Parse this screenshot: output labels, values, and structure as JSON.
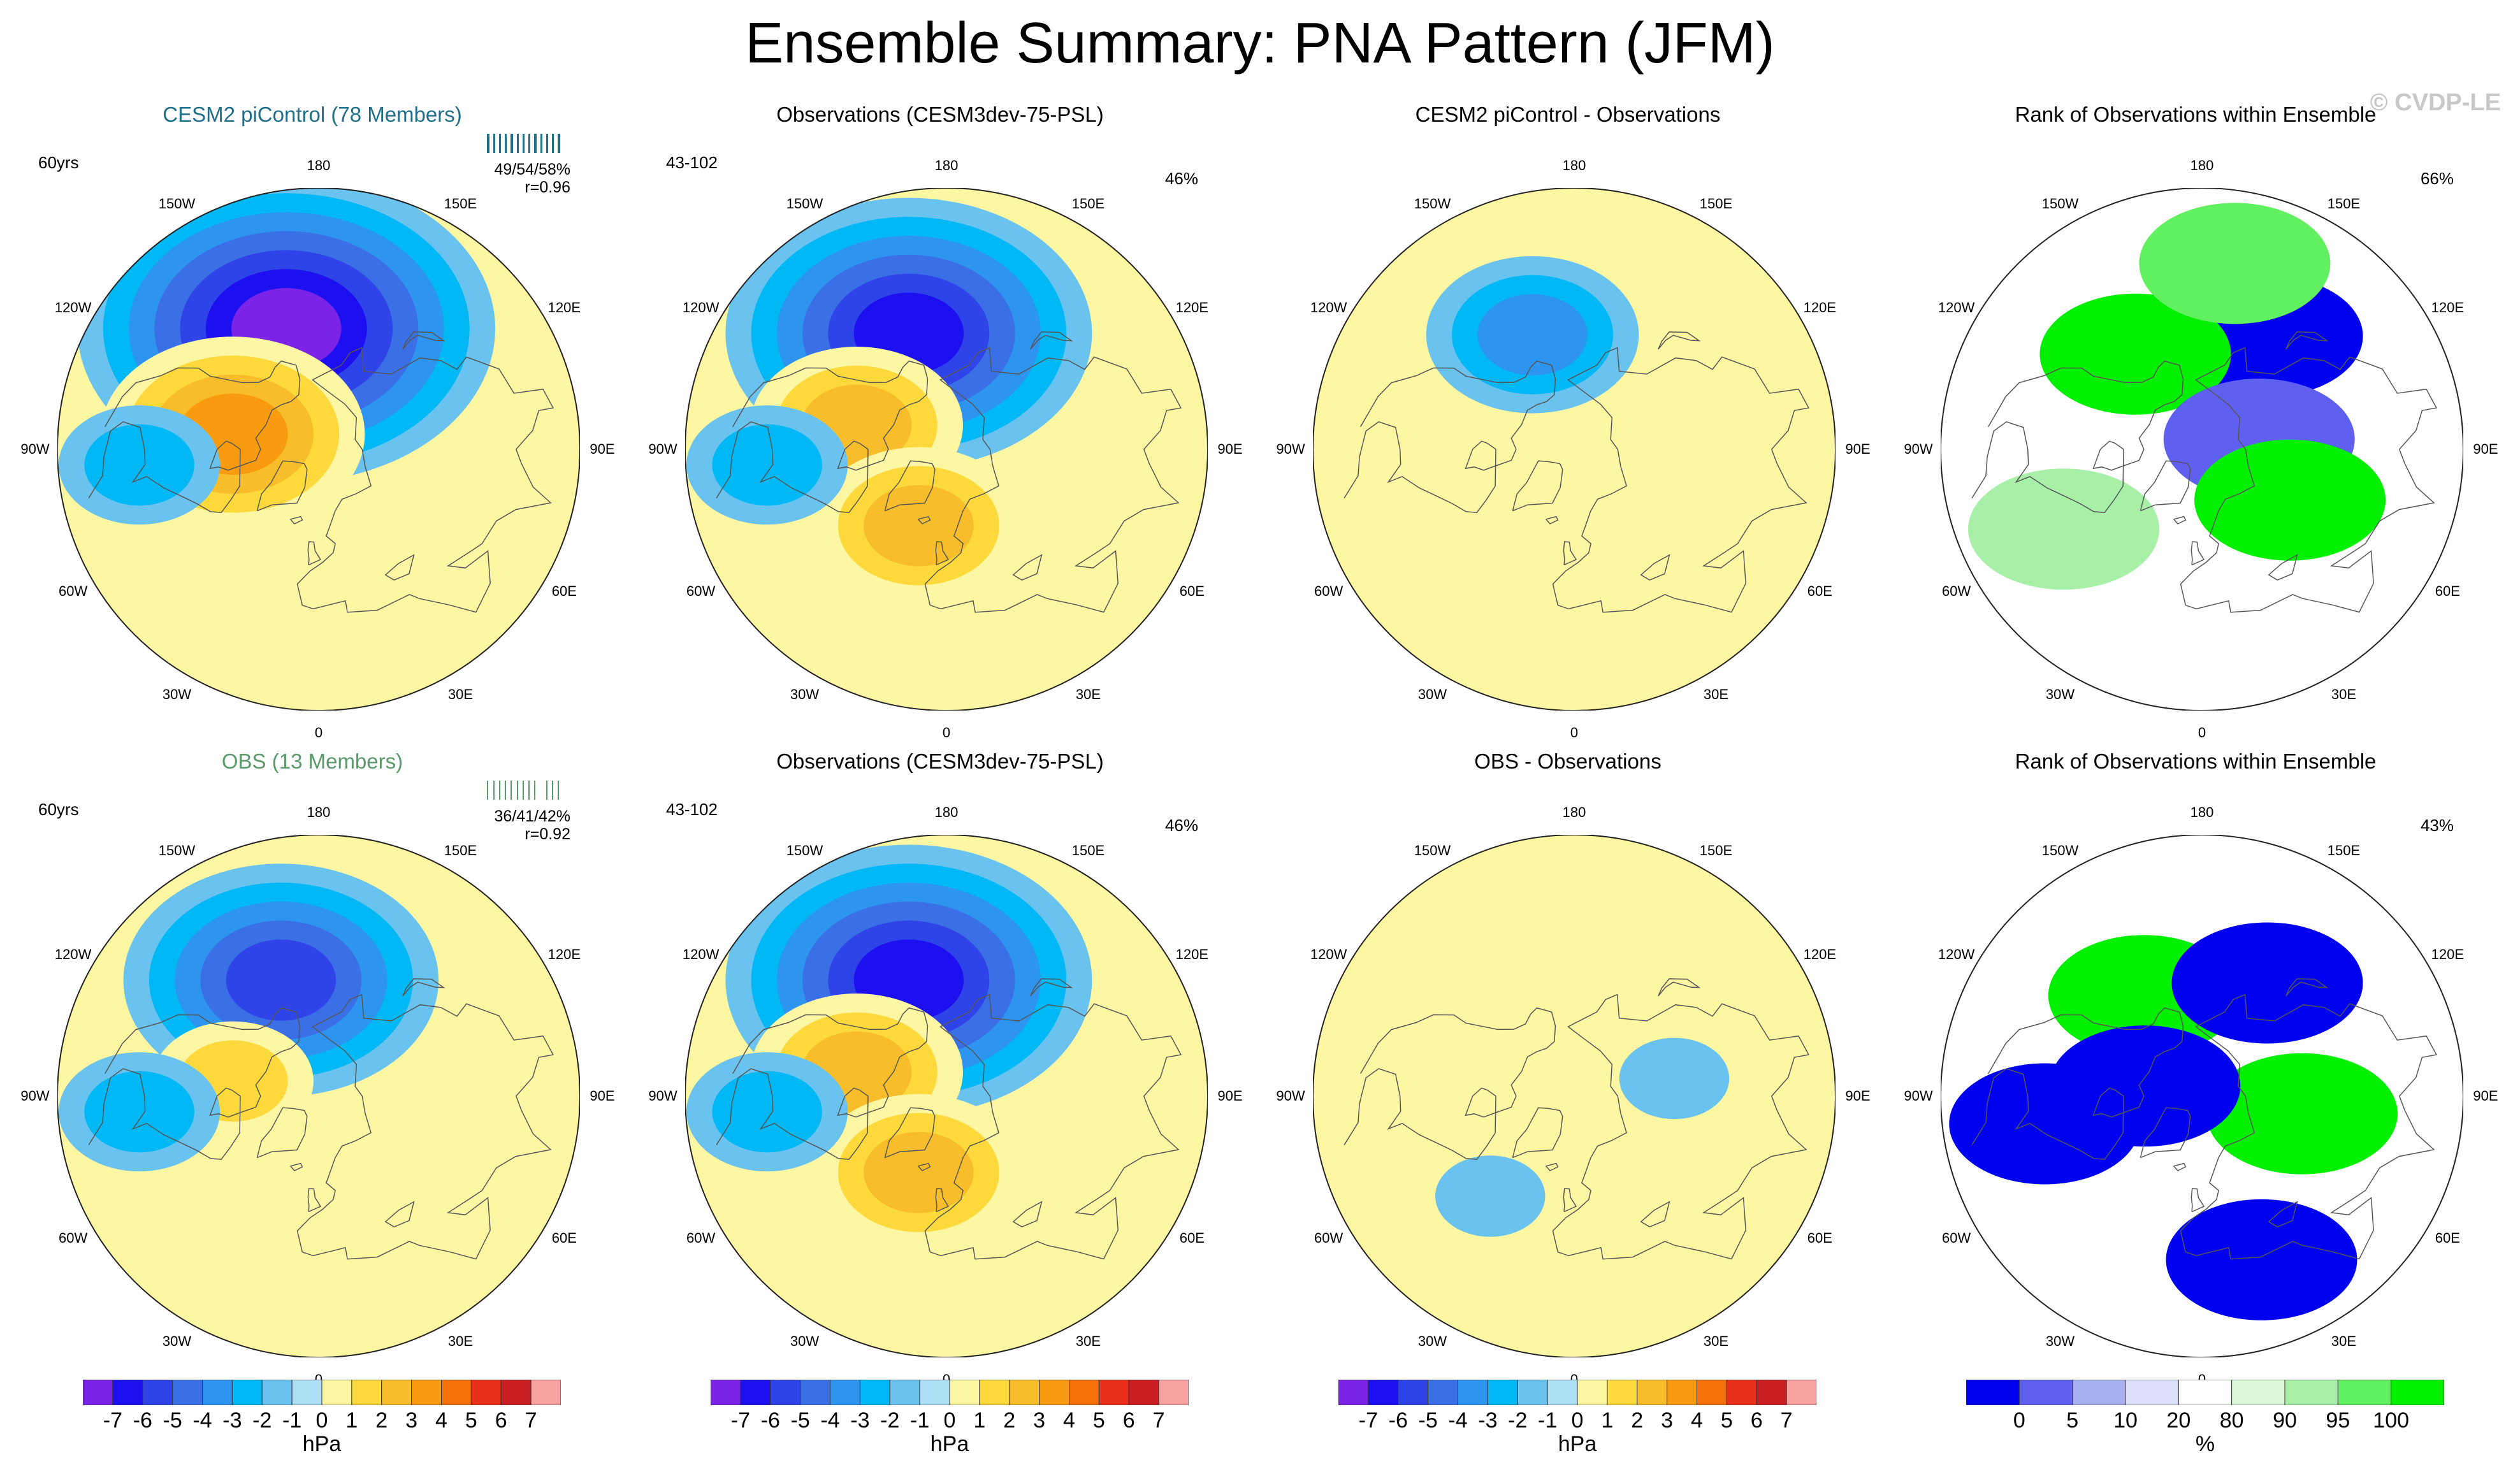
{
  "figure_title": "Ensemble Summary: PNA Pattern (JFM)",
  "watermark": "© CVDP-LE",
  "longitude_labels": [
    "180",
    "150E",
    "120E",
    "90E",
    "60E",
    "30E",
    "0",
    "30W",
    "60W",
    "90W",
    "120W",
    "150W"
  ],
  "colors": {
    "model_title": "#1f6f8b",
    "obs_model_title": "#5a9a6a",
    "land_outline": "#555555"
  },
  "chart_data": [
    {
      "type": "map",
      "title": "CESM2 piControl (78 Members)",
      "period": "60yrs",
      "stat_line1": "49/54/58%",
      "stat_line2": "r=0.96",
      "rug_color": "#1f6f8b",
      "centers": [
        {
          "lat": 47,
          "lon": -165,
          "value": -7
        },
        {
          "lat": 60,
          "lon": -100,
          "value": 4
        },
        {
          "lat": 28,
          "lon": -85,
          "value": -2
        }
      ]
    },
    {
      "type": "map",
      "title": "Observations (CESM3dev-75-PSL)",
      "period": "43-102",
      "percent": "46%",
      "centers": [
        {
          "lat": 48,
          "lon": -162,
          "value": -6
        },
        {
          "lat": 58,
          "lon": -105,
          "value": 3
        },
        {
          "lat": 62,
          "lon": -20,
          "value": 3
        },
        {
          "lat": 28,
          "lon": -85,
          "value": -2
        }
      ]
    },
    {
      "type": "map",
      "title": "CESM2 piControl - Observations",
      "centers": [
        {
          "lat": 48,
          "lon": -160,
          "value": -3
        },
        {
          "lat": 75,
          "lon": -60,
          "value": 1
        }
      ]
    },
    {
      "type": "rank",
      "title": "Rank of Observations within Ensemble",
      "percent": "66%",
      "regions": [
        {
          "lat": 45,
          "lon": 150,
          "value": 0
        },
        {
          "lat": 50,
          "lon": -145,
          "value": 100
        },
        {
          "lat": 70,
          "lon": 100,
          "value": 2
        },
        {
          "lat": 55,
          "lon": 60,
          "value": 100
        },
        {
          "lat": 35,
          "lon": -60,
          "value": 90
        },
        {
          "lat": 25,
          "lon": 170,
          "value": 95
        }
      ]
    },
    {
      "type": "map",
      "title": "OBS (13 Members)",
      "period": "60yrs",
      "stat_line1": "36/41/42%",
      "stat_line2": "r=0.92",
      "rug_color": "#5a9a6a",
      "centers": [
        {
          "lat": 48,
          "lon": -162,
          "value": -5
        },
        {
          "lat": 60,
          "lon": -100,
          "value": 2
        },
        {
          "lat": 28,
          "lon": -85,
          "value": -2
        }
      ]
    },
    {
      "type": "map",
      "title": "Observations (CESM3dev-75-PSL)",
      "period": "43-102",
      "percent": "46%",
      "centers": [
        {
          "lat": 48,
          "lon": -162,
          "value": -6
        },
        {
          "lat": 58,
          "lon": -105,
          "value": 3
        },
        {
          "lat": 62,
          "lon": -20,
          "value": 3
        },
        {
          "lat": 28,
          "lon": -85,
          "value": -2
        }
      ]
    },
    {
      "type": "map",
      "title": "OBS - Observations",
      "centers": [
        {
          "lat": 55,
          "lon": 100,
          "value": -1
        },
        {
          "lat": 45,
          "lon": -40,
          "value": -1
        },
        {
          "lat": 60,
          "lon": -150,
          "value": 1
        }
      ]
    },
    {
      "type": "rank",
      "title": "Rank of Observations within Ensemble",
      "percent": "43%",
      "regions": [
        {
          "lat": 50,
          "lon": -150,
          "value": 100
        },
        {
          "lat": 55,
          "lon": 80,
          "value": 100
        },
        {
          "lat": 45,
          "lon": 150,
          "value": 0
        },
        {
          "lat": 35,
          "lon": -80,
          "value": 0
        },
        {
          "lat": 30,
          "lon": 20,
          "value": 0
        },
        {
          "lat": 70,
          "lon": -100,
          "value": 0
        }
      ]
    }
  ],
  "colorbars": [
    {
      "unit": "hPa",
      "ticks": [
        "-7",
        "-6",
        "-5",
        "-4",
        "-3",
        "-2",
        "-1",
        "0",
        "1",
        "2",
        "3",
        "4",
        "5",
        "6",
        "7"
      ],
      "colors": [
        "#7b24e8",
        "#1d10f0",
        "#2f44e8",
        "#3a6fe6",
        "#2d94ef",
        "#00b8f5",
        "#6ac2ee",
        "#afdff5",
        "#fdf6a3",
        "#fdd93b",
        "#f7bd2a",
        "#f99b0f",
        "#f4700a",
        "#e8301a",
        "#c81e24",
        "#f7a1a1"
      ]
    },
    {
      "unit": "hPa",
      "ticks": [
        "-7",
        "-6",
        "-5",
        "-4",
        "-3",
        "-2",
        "-1",
        "0",
        "1",
        "2",
        "3",
        "4",
        "5",
        "6",
        "7"
      ],
      "colors": [
        "#7b24e8",
        "#1d10f0",
        "#2f44e8",
        "#3a6fe6",
        "#2d94ef",
        "#00b8f5",
        "#6ac2ee",
        "#afdff5",
        "#fdf6a3",
        "#fdd93b",
        "#f7bd2a",
        "#f99b0f",
        "#f4700a",
        "#e8301a",
        "#c81e24",
        "#f7a1a1"
      ]
    },
    {
      "unit": "hPa",
      "ticks": [
        "-7",
        "-6",
        "-5",
        "-4",
        "-3",
        "-2",
        "-1",
        "0",
        "1",
        "2",
        "3",
        "4",
        "5",
        "6",
        "7"
      ],
      "colors": [
        "#7b24e8",
        "#1d10f0",
        "#2f44e8",
        "#3a6fe6",
        "#2d94ef",
        "#00b8f5",
        "#6ac2ee",
        "#afdff5",
        "#fdf6a3",
        "#fdd93b",
        "#f7bd2a",
        "#f99b0f",
        "#f4700a",
        "#e8301a",
        "#c81e24",
        "#f7a1a1"
      ]
    },
    {
      "unit": "%",
      "ticks": [
        "0",
        "5",
        "10",
        "20",
        "80",
        "90",
        "95",
        "100"
      ],
      "colors": [
        "#0000f0",
        "#6060f0",
        "#a8b0f0",
        "#dde0f8",
        "#ffffff",
        "#ddf8dd",
        "#a8f0a8",
        "#60f060",
        "#00f000"
      ]
    }
  ]
}
